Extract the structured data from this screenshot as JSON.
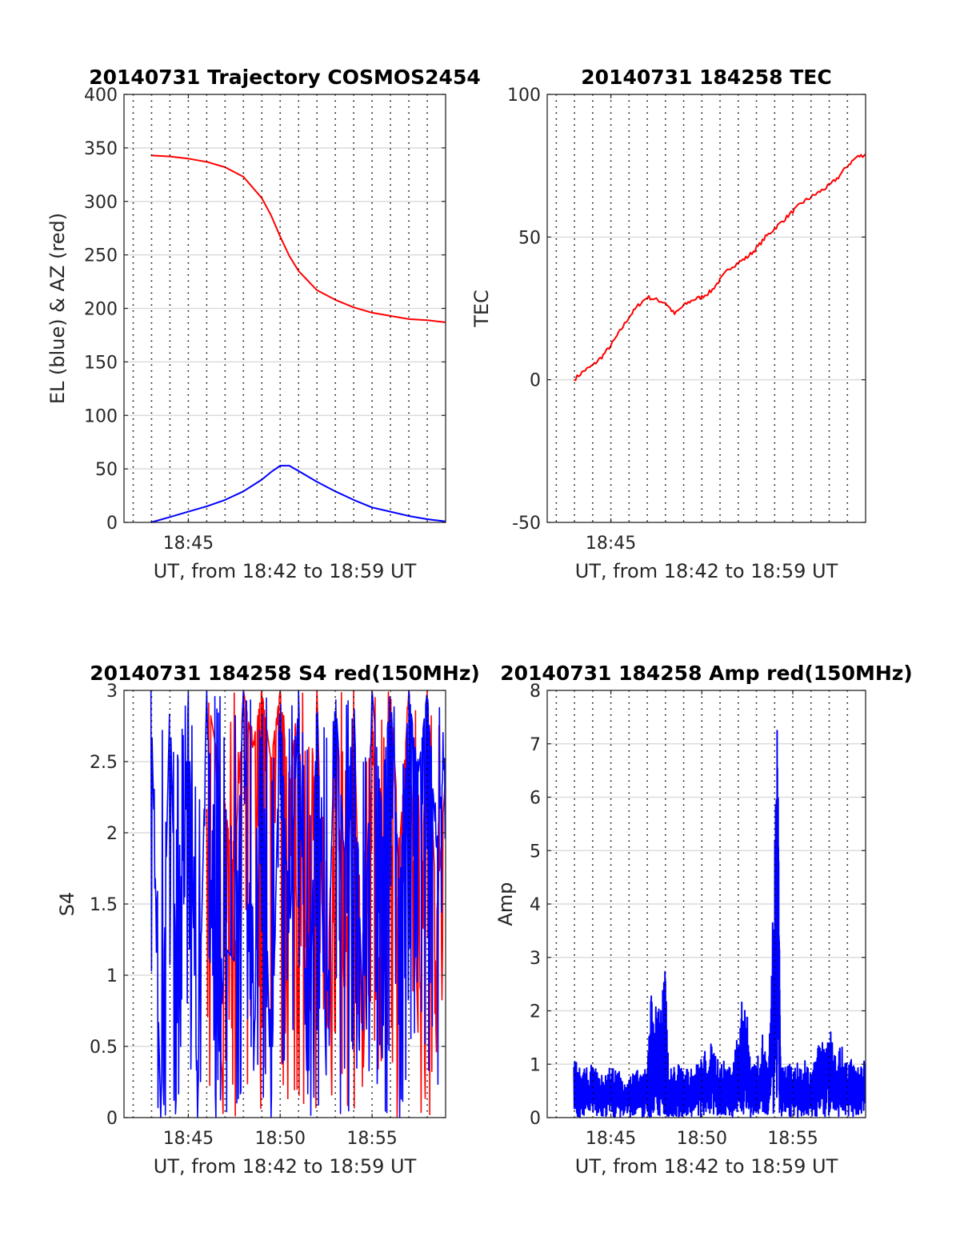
{
  "colors": {
    "red": "#ff0000",
    "blue": "#0000ff",
    "grid": "#dcdcdc",
    "axis": "#262626"
  },
  "chart_data": [
    {
      "type": "line",
      "title": "20140731 Trajectory COSMOS2454",
      "xlabel": "UT, from 18:42 to 18:59 UT",
      "ylabel": "EL (blue) & AZ (red)",
      "xlim": [
        "18:41:30",
        "18:59:00"
      ],
      "ylim": [
        0,
        400
      ],
      "yticks": [
        "0",
        "50",
        "100",
        "150",
        "200",
        "250",
        "300",
        "350",
        "400"
      ],
      "xticks": [
        {
          "t": "18:45",
          "label": "18:45"
        }
      ],
      "grid": "y-solid, x-dotted every 1 min",
      "series": [
        {
          "color": "red",
          "x": [
            "18:42:58",
            "18:44:00",
            "18:45:00",
            "18:46:00",
            "18:47:00",
            "18:48:00",
            "18:49:00",
            "18:49:30",
            "18:50:00",
            "18:50:30",
            "18:51:00",
            "18:52:00",
            "18:53:00",
            "18:54:00",
            "18:55:00",
            "18:56:00",
            "18:57:00",
            "18:58:00",
            "18:59:00"
          ],
          "y": [
            343,
            342,
            340,
            337,
            332,
            323,
            303,
            287,
            267,
            249,
            235,
            217,
            208,
            201,
            196,
            193,
            190,
            189,
            187
          ]
        },
        {
          "color": "blue",
          "x": [
            "18:42:58",
            "18:44:00",
            "18:45:00",
            "18:46:00",
            "18:47:00",
            "18:48:00",
            "18:49:00",
            "18:49:30",
            "18:50:00",
            "18:50:30",
            "18:51:00",
            "18:52:00",
            "18:53:00",
            "18:54:00",
            "18:55:00",
            "18:56:00",
            "18:57:00",
            "18:58:00",
            "18:59:00"
          ],
          "y": [
            0,
            5,
            10,
            15,
            21,
            29,
            40,
            47,
            53,
            53,
            48,
            38,
            29,
            21,
            14,
            10,
            6,
            3,
            1
          ]
        }
      ]
    },
    {
      "type": "line",
      "title": "20140731 184258 TEC",
      "xlabel": "UT, from 18:42 to 18:59 UT",
      "ylabel": "TEC",
      "xlim": [
        "18:41:30",
        "18:59:00"
      ],
      "ylim": [
        -50,
        100
      ],
      "yticks": [
        "-50",
        "0",
        "50",
        "100"
      ],
      "xticks": [
        {
          "t": "18:45",
          "label": "18:45"
        }
      ],
      "grid": "y-solid, x-dotted every 1 min",
      "series": [
        {
          "color": "red",
          "x": [
            "18:42:58",
            "18:43:30",
            "18:44:00",
            "18:44:30",
            "18:45:00",
            "18:45:30",
            "18:46:00",
            "18:46:30",
            "18:47:00",
            "18:47:30",
            "18:48:00",
            "18:48:30",
            "18:49:00",
            "18:49:30",
            "18:50:00",
            "18:50:30",
            "18:51:00",
            "18:51:30",
            "18:52:00",
            "18:52:30",
            "18:53:00",
            "18:53:30",
            "18:54:00",
            "18:54:30",
            "18:55:00",
            "18:55:30",
            "18:56:00",
            "18:56:30",
            "18:57:00",
            "18:57:30",
            "18:58:00",
            "18:58:30",
            "18:59:00"
          ],
          "y": [
            0,
            3,
            5,
            8,
            12,
            17,
            22,
            26,
            29,
            28,
            27,
            23,
            26,
            28,
            29,
            31,
            35,
            39,
            41,
            43,
            46,
            50,
            53,
            56,
            59,
            62,
            64,
            66,
            68,
            71,
            75,
            78,
            79
          ]
        }
      ]
    },
    {
      "type": "line",
      "title": "20140731 184258 S4 red(150MHz)",
      "xlabel": "UT, from 18:42 to 18:59 UT",
      "ylabel": "S4",
      "xlim": [
        "18:41:30",
        "18:59:00"
      ],
      "ylim": [
        0,
        3
      ],
      "yticks": [
        "0",
        "0.5",
        "1",
        "1.5",
        "2",
        "2.5",
        "3"
      ],
      "xticks": [
        {
          "t": "18:45",
          "label": "18:45"
        },
        {
          "t": "18:50",
          "label": "18:50"
        },
        {
          "t": "18:55",
          "label": "18:55"
        }
      ],
      "grid": "y-solid, x-dotted every 1 min",
      "series": [
        {
          "color": "red",
          "note_segments": "dense noisy red trace between 0 and 3",
          "x": [
            "18:46:00",
            "18:47:00",
            "18:47:30",
            "18:48:00",
            "18:48:30",
            "18:49:00",
            "18:49:30",
            "18:50:00",
            "18:50:30",
            "18:51:00",
            "18:51:30",
            "18:52:00",
            "18:52:30",
            "18:53:00",
            "18:53:30",
            "18:54:00",
            "18:54:30",
            "18:55:00",
            "18:55:30",
            "18:56:00",
            "18:56:30",
            "18:57:00",
            "18:57:30",
            "18:58:00",
            "18:58:30",
            "18:59:00"
          ],
          "y": [
            3,
            2.2,
            1.7,
            3,
            2.6,
            3,
            2.5,
            3,
            2.3,
            3,
            0.3,
            3,
            0.5,
            3,
            0.8,
            3,
            0.2,
            3,
            0.4,
            3,
            1.9,
            3,
            0.6,
            3,
            1.4,
            2.4
          ]
        },
        {
          "color": "blue",
          "note_segments": "dense noisy blue trace between 0 and 3",
          "x": [
            "18:42:58",
            "18:43:30",
            "18:44:00",
            "18:44:30",
            "18:45:00",
            "18:45:30",
            "18:46:00",
            "18:46:30",
            "18:47:00",
            "18:47:30",
            "18:48:00",
            "18:48:30",
            "18:49:00",
            "18:49:30",
            "18:50:00",
            "18:50:30",
            "18:51:00",
            "18:51:30",
            "18:52:00",
            "18:52:30",
            "18:53:00",
            "18:53:30",
            "18:54:00",
            "18:54:30",
            "18:55:00",
            "18:55:30",
            "18:56:00",
            "18:56:30",
            "18:57:00",
            "18:57:30",
            "18:58:00",
            "18:58:30",
            "18:59:00"
          ],
          "y": [
            3,
            0,
            3,
            0,
            3,
            0,
            3,
            0,
            1.2,
            1.1,
            3,
            0,
            3,
            0,
            3,
            1.2,
            3,
            0,
            3,
            0.3,
            3,
            1.8,
            3,
            0.6,
            3,
            2.2,
            3,
            1.6,
            3,
            2.4,
            3,
            1.9,
            2.6
          ]
        }
      ]
    },
    {
      "type": "line",
      "title": "20140731 184258 Amp red(150MHz)",
      "xlabel": "UT, from 18:42 to 18:59 UT",
      "ylabel": "Amp",
      "xlim": [
        "18:41:30",
        "18:59:00"
      ],
      "ylim": [
        0,
        8
      ],
      "yticks": [
        "0",
        "1",
        "2",
        "3",
        "4",
        "5",
        "6",
        "7",
        "8"
      ],
      "xticks": [
        {
          "t": "18:45",
          "label": "18:45"
        },
        {
          "t": "18:50",
          "label": "18:50"
        },
        {
          "t": "18:55",
          "label": "18:55"
        }
      ],
      "grid": "y-solid, x-dotted every 1 min",
      "series": [
        {
          "color": "blue",
          "x": [
            "18:42:58",
            "18:43:30",
            "18:44:00",
            "18:44:30",
            "18:45:00",
            "18:45:30",
            "18:46:00",
            "18:46:30",
            "18:47:00",
            "18:47:10",
            "18:47:30",
            "18:47:50",
            "18:48:00",
            "18:48:10",
            "18:48:30",
            "18:49:00",
            "18:49:30",
            "18:50:00",
            "18:50:30",
            "18:51:00",
            "18:51:30",
            "18:52:00",
            "18:52:20",
            "18:52:40",
            "18:53:00",
            "18:53:20",
            "18:53:40",
            "18:54:00",
            "18:54:10",
            "18:54:20",
            "18:54:30",
            "18:55:00",
            "18:55:30",
            "18:56:00",
            "18:56:30",
            "18:57:00",
            "18:57:30",
            "18:58:00",
            "18:58:30",
            "18:59:00"
          ],
          "y": [
            1.1,
            0.9,
            1.0,
            0.8,
            1.0,
            0.9,
            0.8,
            0.9,
            0.9,
            2.4,
            2.1,
            2.5,
            2.8,
            0.9,
            1.0,
            1.0,
            0.9,
            1.2,
            1.4,
            1.1,
            1.0,
            1.6,
            2.6,
            1.2,
            1.0,
            1.6,
            0.9,
            5.2,
            7.8,
            0.9,
            1.0,
            1.0,
            1.1,
            1.0,
            1.6,
            1.9,
            1.4,
            1.2,
            1.0,
            1.1
          ]
        }
      ]
    }
  ]
}
